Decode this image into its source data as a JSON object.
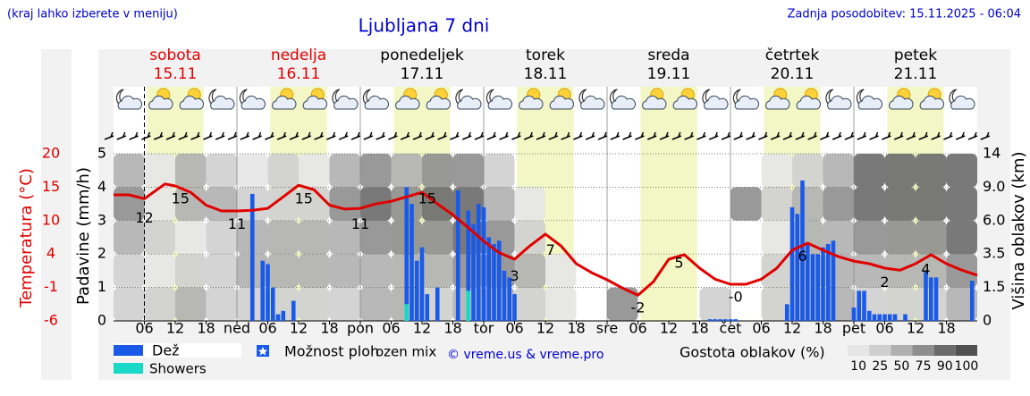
{
  "header": {
    "region_note": "(kraj lahko izberete v meniju)",
    "updated": "Zadnja posodobitev: 15.11.2025 - 06:04"
  },
  "chart_data": {
    "type": "meteogram",
    "title": "Ljubljana 7 dni",
    "days": [
      {
        "name": "sobota",
        "date": "15.11",
        "color": "#e00000"
      },
      {
        "name": "nedelja",
        "date": "16.11",
        "color": "#e00000"
      },
      {
        "name": "ponedeljek",
        "date": "17.11",
        "color": "#000000"
      },
      {
        "name": "torek",
        "date": "18.11",
        "color": "#000000"
      },
      {
        "name": "sreda",
        "date": "19.11",
        "color": "#000000"
      },
      {
        "name": "četrtek",
        "date": "20.11",
        "color": "#000000"
      },
      {
        "name": "petek",
        "date": "21.11",
        "color": "#000000"
      }
    ],
    "xlim": [
      0,
      168
    ],
    "xticks": [
      {
        "value": 6,
        "label": "06"
      },
      12,
      18,
      {
        "value": 24,
        "label": "ned"
      },
      {
        "value": 30,
        "label": "06"
      },
      {
        "value": 36,
        "label": "12"
      },
      {
        "value": 42,
        "label": "18"
      },
      {
        "value": 48,
        "label": "pon"
      },
      {
        "value": 54,
        "label": "06"
      },
      {
        "value": 60,
        "label": "12"
      },
      {
        "value": 66,
        "label": "18"
      },
      {
        "value": 72,
        "label": "tor"
      },
      {
        "value": 78,
        "label": "06"
      },
      {
        "value": 84,
        "label": "12"
      },
      {
        "value": 90,
        "label": "18"
      },
      {
        "value": 96,
        "label": "sre"
      },
      {
        "value": 102,
        "label": "06"
      },
      {
        "value": 108,
        "label": "12"
      },
      {
        "value": 114,
        "label": "18"
      },
      {
        "value": 120,
        "label": "čet"
      },
      {
        "value": 126,
        "label": "06"
      },
      {
        "value": 132,
        "label": "12"
      },
      {
        "value": 138,
        "label": "18"
      },
      {
        "value": 144,
        "label": "pet"
      },
      {
        "value": 150,
        "label": "06"
      },
      {
        "value": 156,
        "label": "12"
      },
      {
        "value": 162,
        "label": "18"
      }
    ],
    "ylabel": "Padavine (mm/h)",
    "ylim": [
      0,
      5
    ],
    "yticks": [
      0,
      1,
      2,
      3,
      4,
      5
    ],
    "y2label": "Temperatura (°C)",
    "y2lim": [
      -6,
      20
    ],
    "y2ticks": [
      -6,
      {
        "value": -0.8,
        "label": "-1"
      },
      {
        "value": 4.4,
        "label": "4"
      },
      {
        "value": 9.6,
        "label": "10"
      },
      {
        "value": 14.8,
        "label": "15"
      },
      20
    ],
    "y3label": "Višina oblakov (km)",
    "y3ticks": [
      0,
      1.5,
      3.5,
      {
        "value": 6,
        "label": "6.0"
      },
      {
        "value": 9,
        "label": "9.0"
      },
      14
    ],
    "grid": true,
    "series": [
      {
        "name": "Showers",
        "color": "#18d8c8",
        "x": [
          57,
          69
        ],
        "values": [
          0.5,
          0.9
        ]
      },
      {
        "name": "Dež",
        "color": "#1a5ae8",
        "x": [
          27,
          29,
          30,
          31,
          32,
          33,
          35,
          57,
          58,
          59,
          60,
          61,
          63,
          67,
          69,
          70,
          71,
          72,
          73,
          74,
          75,
          76,
          77,
          78,
          116,
          117,
          118,
          119,
          120,
          121,
          131,
          132,
          133,
          134,
          135,
          136,
          137,
          138,
          139,
          140,
          144,
          145,
          146,
          147,
          148,
          149,
          150,
          151,
          152,
          154,
          158,
          159,
          160,
          167
        ],
        "values": [
          3.8,
          1.8,
          1.7,
          1.0,
          0.2,
          0.3,
          0.6,
          3.5,
          3.5,
          1.8,
          2.2,
          0.8,
          1.0,
          3.9,
          2.4,
          2.9,
          3.5,
          3.4,
          2.5,
          2.3,
          2.4,
          1.5,
          1.3,
          0.8,
          0.05,
          0.05,
          0.05,
          0.05,
          0.05,
          0.05,
          0.5,
          3.4,
          3.2,
          4.2,
          2.3,
          2.0,
          2.0,
          2.2,
          2.3,
          2.4,
          0.4,
          0.9,
          0.9,
          0.3,
          0.2,
          0.2,
          0.2,
          0.2,
          0.2,
          0.2,
          1.5,
          1.3,
          1.3,
          1.2
        ]
      },
      {
        "color": "#e00000",
        "axis": "y2",
        "x": [
          0,
          3,
          6,
          10,
          12,
          15,
          18,
          21,
          24,
          27,
          30,
          33,
          36,
          39,
          42,
          45,
          48,
          51,
          54,
          57,
          60,
          63,
          66,
          69,
          72,
          75,
          78,
          81,
          84,
          87,
          90,
          93,
          96,
          99,
          102,
          105,
          108,
          111,
          114,
          117,
          120,
          123,
          126,
          129,
          132,
          135,
          138,
          141,
          144,
          147,
          150,
          153,
          156,
          159,
          162,
          165,
          168
        ],
        "values": [
          13.6,
          13.6,
          13.0,
          15.3,
          15.0,
          14.0,
          12.0,
          11.1,
          11.1,
          11.2,
          11.5,
          13.3,
          15.1,
          14.4,
          12.0,
          11.4,
          11.5,
          12.2,
          12.6,
          13.3,
          14.0,
          12.2,
          10.5,
          8.5,
          6.4,
          4.6,
          3.6,
          5.7,
          7.5,
          5.7,
          2.9,
          1.5,
          0.4,
          -0.9,
          -2.0,
          0.1,
          3.6,
          4.3,
          2.2,
          0.5,
          -0.3,
          -0.3,
          0.5,
          2.2,
          5.0,
          6.1,
          5.0,
          4.0,
          3.3,
          2.9,
          2.2,
          1.9,
          2.9,
          4.3,
          2.9,
          1.9,
          1.1
        ]
      }
    ],
    "temp_labels": [
      {
        "x": 6,
        "value": 12
      },
      {
        "x": 13,
        "value": 15
      },
      {
        "x": 24,
        "value": 11
      },
      {
        "x": 37,
        "value": 15
      },
      {
        "x": 48,
        "value": 11
      },
      {
        "x": 61,
        "value": 15
      },
      {
        "x": 78,
        "value": 3
      },
      {
        "x": 85,
        "value": 7
      },
      {
        "x": 102,
        "value": -2
      },
      {
        "x": 110,
        "value": 5
      },
      {
        "x": 121,
        "value": -0.3,
        "label": "-0"
      },
      {
        "x": 134,
        "value": 6
      },
      {
        "x": 150,
        "value": 2
      },
      {
        "x": 158,
        "value": 4
      }
    ],
    "clouds": {
      "title": "Gostota oblakov (%)",
      "levels": [
        10,
        25,
        50,
        75,
        90,
        100
      ],
      "colors": [
        "#e6e6e6",
        "#cfcfcf",
        "#b0b0b0",
        "#8e8e8e",
        "#6a6a6a",
        "#505050"
      ],
      "x": [
        0,
        6,
        12,
        18,
        24,
        30,
        36,
        42,
        48,
        54,
        60,
        66,
        72,
        78,
        84,
        90,
        96,
        102,
        108,
        114,
        120,
        126,
        132,
        138,
        144,
        150,
        156,
        162
      ],
      "values": [
        [
          25,
          25,
          50,
          75,
          50
        ],
        [
          25,
          10,
          25,
          10,
          10
        ],
        [
          50,
          25,
          10,
          50,
          50
        ],
        [
          25,
          25,
          25,
          50,
          25
        ],
        [
          25,
          50,
          50,
          25,
          10
        ],
        [
          25,
          50,
          50,
          25,
          25
        ],
        [
          25,
          50,
          50,
          25,
          10
        ],
        [
          25,
          50,
          50,
          75,
          50
        ],
        [
          50,
          50,
          75,
          90,
          75
        ],
        [
          50,
          50,
          75,
          75,
          50
        ],
        [
          25,
          50,
          75,
          90,
          75
        ],
        [
          50,
          75,
          90,
          90,
          75
        ],
        [
          50,
          75,
          75,
          50,
          25
        ],
        [
          25,
          50,
          25,
          10,
          0
        ],
        [
          10,
          10,
          0,
          0,
          0
        ],
        [
          0,
          0,
          0,
          0,
          0
        ],
        [
          75,
          0,
          0,
          0,
          0
        ],
        [
          0,
          0,
          0,
          0,
          0
        ],
        [
          0,
          0,
          0,
          0,
          0
        ],
        [
          25,
          0,
          0,
          0,
          0
        ],
        [
          0,
          0,
          0,
          75,
          0
        ],
        [
          25,
          25,
          10,
          25,
          10
        ],
        [
          50,
          50,
          50,
          50,
          25
        ],
        [
          50,
          50,
          50,
          75,
          50
        ],
        [
          25,
          50,
          75,
          90,
          90
        ],
        [
          25,
          50,
          75,
          90,
          90
        ],
        [
          25,
          50,
          75,
          90,
          90
        ],
        [
          50,
          75,
          90,
          90,
          90
        ]
      ]
    },
    "legend_extra": [
      "Možnost ploh",
      "ozen mix"
    ],
    "credit": "© vreme.us & vreme.pro"
  }
}
